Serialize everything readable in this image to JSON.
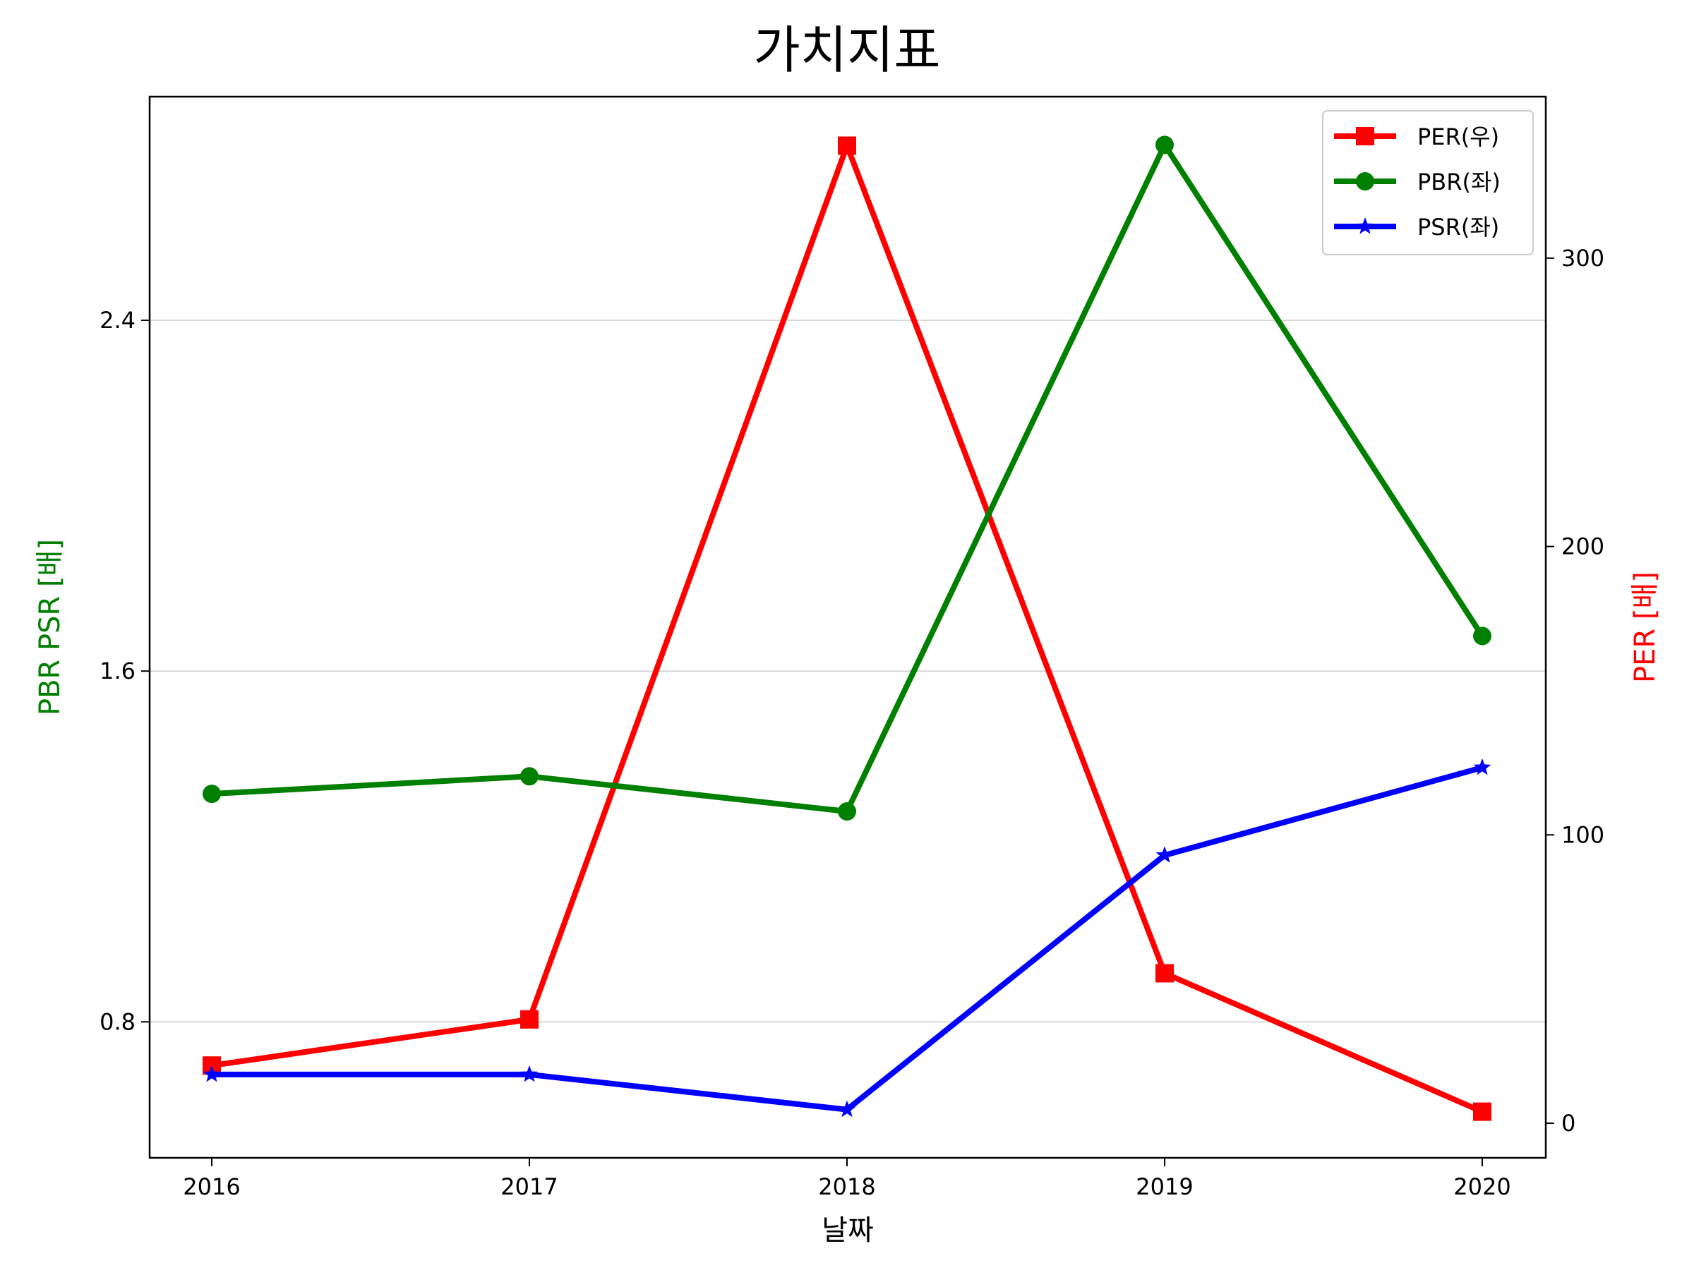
{
  "chart_data": {
    "type": "line",
    "title": "가치지표",
    "xlabel": "날짜",
    "ylabel_left": "PBR PSR [배]",
    "ylabel_right": "PER [배]",
    "categories": [
      "2016",
      "2017",
      "2018",
      "2019",
      "2020"
    ],
    "left_ylim": [
      0.49,
      2.91
    ],
    "left_yticks": [
      "0.8",
      "1.6",
      "2.4"
    ],
    "right_ylim": [
      -12,
      356
    ],
    "right_yticks": [
      "0",
      "100",
      "200",
      "300"
    ],
    "grid": "horizontal, left axis",
    "legend_position": "top-right",
    "series": [
      {
        "name": "PER(우)",
        "axis": "right",
        "color": "#ff0000",
        "marker": "square",
        "values": [
          20,
          36,
          339,
          52,
          4
        ]
      },
      {
        "name": "PBR(좌)",
        "axis": "left",
        "color": "#008000",
        "marker": "circle",
        "values": [
          1.32,
          1.36,
          1.28,
          2.8,
          1.68
        ]
      },
      {
        "name": "PSR(좌)",
        "axis": "left",
        "color": "#0000ff",
        "marker": "star",
        "values": [
          0.68,
          0.68,
          0.6,
          1.18,
          1.38
        ]
      }
    ]
  }
}
